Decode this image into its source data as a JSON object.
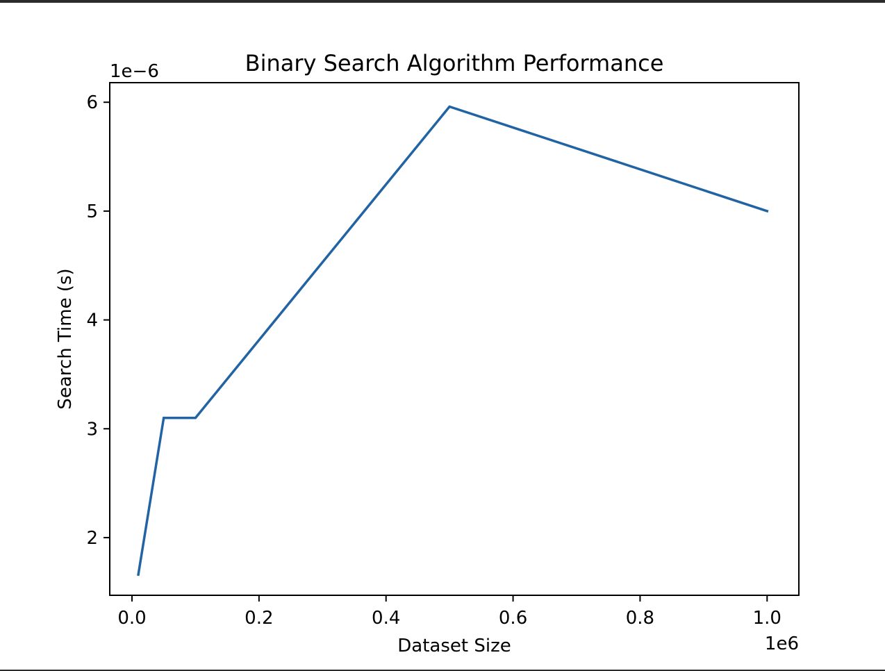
{
  "chart_data": {
    "type": "line",
    "title": "Binary Search Algorithm Performance",
    "xlabel": "Dataset Size",
    "ylabel": "Search Time (s)",
    "x_offset_label": "1e6",
    "y_offset_label": "1e−6",
    "xlim": [
      -35000,
      1050000
    ],
    "ylim": [
      1.47e-06,
      6.18e-06
    ],
    "x_ticks": [
      0,
      200000,
      400000,
      600000,
      800000,
      1000000
    ],
    "x_tick_labels": [
      "0.0",
      "0.2",
      "0.4",
      "0.6",
      "0.8",
      "1.0"
    ],
    "y_ticks": [
      2e-06,
      3e-06,
      4e-06,
      5e-06,
      6e-06
    ],
    "y_tick_labels": [
      "2",
      "3",
      "4",
      "5",
      "6"
    ],
    "grid": false,
    "series": [
      {
        "color": "#2163a3",
        "x": [
          10000,
          50000,
          100000,
          500000,
          1000000
        ],
        "y": [
          1.66e-06,
          3.1e-06,
          3.1e-06,
          5.96e-06,
          5e-06
        ]
      }
    ]
  }
}
